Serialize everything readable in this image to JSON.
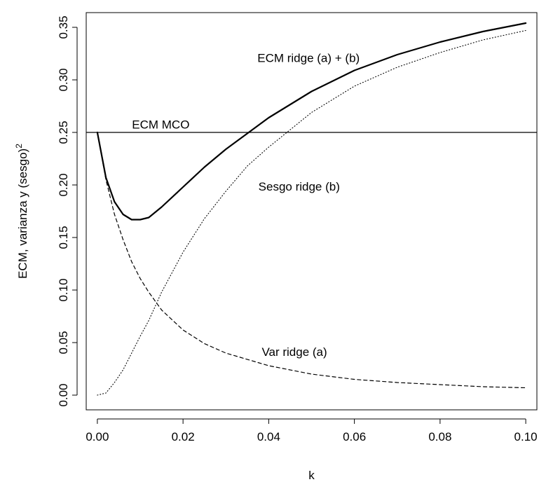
{
  "chart_data": {
    "type": "line",
    "title": "",
    "xlabel": "k",
    "ylabel": "ECM, varianza y (sesgo)",
    "ylabel_superscript": "2",
    "xlim": [
      -0.0026,
      0.1026
    ],
    "ylim": [
      -0.014,
      0.364
    ],
    "xticks": [
      0.0,
      0.02,
      0.04,
      0.06,
      0.08,
      0.1
    ],
    "xtick_labels": [
      "0.00",
      "0.02",
      "0.04",
      "0.06",
      "0.08",
      "0.10"
    ],
    "yticks": [
      0.0,
      0.05,
      0.1,
      0.15,
      0.2,
      0.25,
      0.3,
      0.35
    ],
    "ytick_labels": [
      "0.00",
      "0.05",
      "0.10",
      "0.15",
      "0.20",
      "0.25",
      "0.30",
      "0.35"
    ],
    "grid": false,
    "legend": "none",
    "hline": {
      "y": 0.25,
      "style": "solid"
    },
    "series": [
      {
        "style": "solid-thick",
        "x": [
          0.0,
          0.002,
          0.004,
          0.006,
          0.008,
          0.01,
          0.012,
          0.015,
          0.02,
          0.025,
          0.03,
          0.035,
          0.04,
          0.05,
          0.06,
          0.07,
          0.08,
          0.09,
          0.1
        ],
        "y": [
          0.25,
          0.207,
          0.184,
          0.172,
          0.167,
          0.167,
          0.169,
          0.179,
          0.198,
          0.217,
          0.234,
          0.249,
          0.264,
          0.289,
          0.309,
          0.324,
          0.336,
          0.346,
          0.354
        ]
      },
      {
        "style": "dashed",
        "x": [
          0.0,
          0.002,
          0.004,
          0.006,
          0.008,
          0.01,
          0.012,
          0.015,
          0.02,
          0.025,
          0.03,
          0.04,
          0.05,
          0.06,
          0.07,
          0.08,
          0.09,
          0.1
        ],
        "y": [
          0.25,
          0.205,
          0.172,
          0.148,
          0.127,
          0.111,
          0.098,
          0.081,
          0.062,
          0.049,
          0.04,
          0.028,
          0.02,
          0.015,
          0.012,
          0.01,
          0.008,
          0.007
        ]
      },
      {
        "style": "dotted",
        "x": [
          0.0,
          0.002,
          0.004,
          0.006,
          0.008,
          0.01,
          0.012,
          0.015,
          0.02,
          0.025,
          0.03,
          0.035,
          0.04,
          0.05,
          0.06,
          0.07,
          0.08,
          0.09,
          0.1
        ],
        "y": [
          0.0,
          0.002,
          0.012,
          0.024,
          0.04,
          0.056,
          0.071,
          0.098,
          0.136,
          0.168,
          0.194,
          0.218,
          0.236,
          0.269,
          0.294,
          0.312,
          0.326,
          0.338,
          0.347
        ]
      }
    ],
    "annotations": [
      {
        "id": "ecm-ridge",
        "text": "ECM ridge (a) + (b)",
        "x": 0.0493,
        "y": 0.3208
      },
      {
        "id": "ecm-mco",
        "text": "ECM MCO",
        "x": 0.0148,
        "y": 0.2574
      },
      {
        "id": "sesgo-ridge",
        "text": "Sesgo ridge (b)",
        "x": 0.0471,
        "y": 0.1984
      },
      {
        "id": "var-ridge",
        "text": "Var ridge (a)",
        "x": 0.046,
        "y": 0.0409
      }
    ]
  }
}
